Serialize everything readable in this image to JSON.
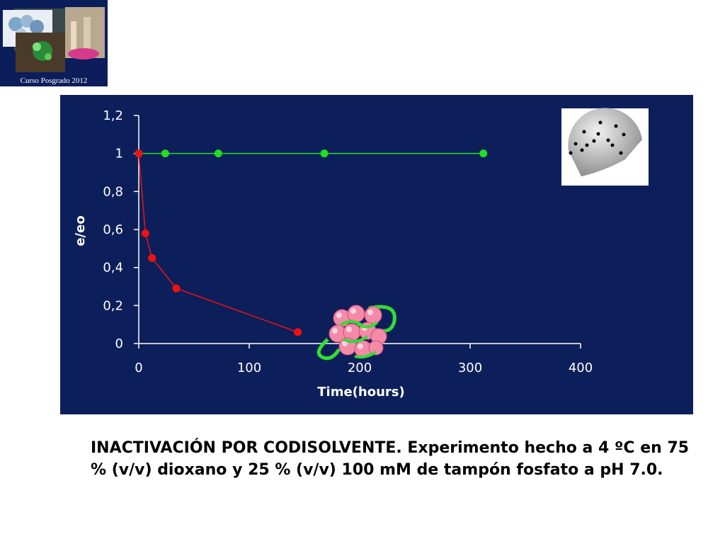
{
  "logo": {
    "caption": "Curso Posgrado 2012"
  },
  "caption": "INACTIVACIÓN POR CODISOLVENTE. Experimento hecho a 4 ºC en 75 % (v/v) dioxano y 25 % (v/v) 100 mM de tampón fosfato a pH 7.0.",
  "chart_data": {
    "type": "line",
    "title": "",
    "xlabel": "Time(hours)",
    "ylabel": "e/eo",
    "xlim": [
      0,
      400
    ],
    "ylim": [
      0,
      1.2
    ],
    "x_ticks": [
      "0",
      "100",
      "200",
      "300",
      "400"
    ],
    "y_ticks": [
      "0",
      "0,2",
      "0,4",
      "0,6",
      "0,8",
      "1",
      "1,2"
    ],
    "grid": false,
    "background": "#0d1f5b",
    "series": [
      {
        "color": "#22dd22",
        "x": [
          0,
          24,
          72,
          168,
          312
        ],
        "y": [
          1,
          1,
          1,
          1,
          1
        ]
      },
      {
        "color": "#ee1111",
        "x": [
          0,
          6,
          12,
          34,
          144
        ],
        "y": [
          1,
          0.58,
          0.45,
          0.29,
          0.06
        ]
      }
    ]
  }
}
